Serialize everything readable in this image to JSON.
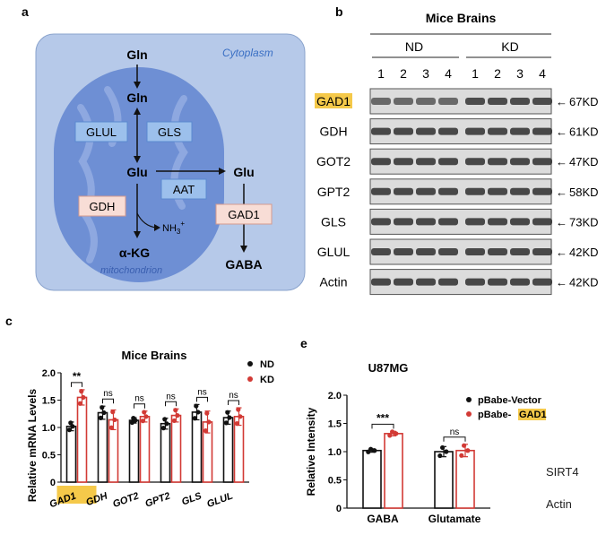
{
  "panel_a": {
    "letter": "a",
    "cytoplasm_label": "Cytoplasm",
    "mitochondrion_label": "mitochondrion",
    "gln_top": "Gln",
    "gln_mito": "Gln",
    "glu_mito": "Glu",
    "glu_cyto": "Glu",
    "akg": "α-KG",
    "gaba": "GABA",
    "nh3": "NH",
    "nh3_sub": "3",
    "nh3_sup": "+",
    "enzymes": {
      "glul": "GLUL",
      "gls": "GLS",
      "gdh": "GDH",
      "aat": "AAT",
      "gad1": "GAD1"
    },
    "colors": {
      "cytoplasm": "#b6c9e9",
      "mitochondrion": "#6e8fd4",
      "enzyme_blue": "#9cc0ec",
      "enzyme_pink": "#f8ddd6"
    }
  },
  "panel_b": {
    "letter": "b",
    "title": "Mice Brains",
    "groups": [
      "ND",
      "KD"
    ],
    "lanes": [
      "1",
      "2",
      "3",
      "4",
      "1",
      "2",
      "3",
      "4"
    ],
    "blots": [
      {
        "protein": "GAD1",
        "mw": "67KD",
        "highlight": true
      },
      {
        "protein": "GDH",
        "mw": "61KD",
        "highlight": false
      },
      {
        "protein": "GOT2",
        "mw": "47KD",
        "highlight": false
      },
      {
        "protein": "GPT2",
        "mw": "58KD",
        "highlight": false
      },
      {
        "protein": "GLS",
        "mw": "73KD",
        "highlight": false
      },
      {
        "protein": "GLUL",
        "mw": "42KD",
        "highlight": false
      },
      {
        "protein": "Actin",
        "mw": "42KD",
        "highlight": false
      }
    ],
    "arrow": "←",
    "highlight_color": "#f5c94a"
  },
  "panel_c": {
    "letter": "c",
    "chart_data": {
      "type": "bar",
      "title": "Mice Brains",
      "ylabel": "Relative mRNA Levels",
      "xlabel": "",
      "ylim": [
        0,
        2.0
      ],
      "yticks": [
        "0",
        "0.5",
        "1.0",
        "1.5",
        "2.0"
      ],
      "yticks_values": [
        0,
        0.5,
        1.0,
        1.5,
        2.0
      ],
      "categories": [
        "GAD1",
        "GDH",
        "GOT2",
        "GPT2",
        "GLS",
        "GLUL"
      ],
      "series": [
        {
          "name": "ND",
          "color": "#111111",
          "values": [
            1.02,
            1.27,
            1.13,
            1.07,
            1.28,
            1.18
          ],
          "errors": [
            0.08,
            0.12,
            0.05,
            0.1,
            0.14,
            0.12
          ]
        },
        {
          "name": "KD",
          "color": "#d23a35",
          "values": [
            1.55,
            1.14,
            1.2,
            1.22,
            1.1,
            1.2
          ],
          "errors": [
            0.14,
            0.18,
            0.1,
            0.12,
            0.2,
            0.16
          ]
        }
      ],
      "significance": [
        "**",
        "ns",
        "ns",
        "ns",
        "ns",
        "ns"
      ],
      "legend": [
        "ND",
        "KD"
      ]
    }
  },
  "panel_e": {
    "letter": "e",
    "chart_data": {
      "type": "bar",
      "title": "U87MG",
      "ylabel": "Relative Intensity",
      "xlabel": "",
      "ylim": [
        0,
        2.0
      ],
      "yticks": [
        "0",
        "0.5",
        "1.0",
        "1.5",
        "2.0"
      ],
      "yticks_values": [
        0,
        0.5,
        1.0,
        1.5,
        2.0
      ],
      "categories": [
        "GABA",
        "Glutamate"
      ],
      "series": [
        {
          "name": "pBabe-Vector",
          "color": "#111111",
          "values": [
            1.02,
            1.0
          ],
          "errors": [
            0.03,
            0.09
          ]
        },
        {
          "name": "pBabe-GAD1",
          "color": "#d23a35",
          "values": [
            1.32,
            1.02
          ],
          "errors": [
            0.04,
            0.11
          ]
        }
      ],
      "significance": [
        "***",
        "ns"
      ],
      "legend": [
        "pBabe-Vector",
        "pBabe-",
        "GAD1"
      ]
    }
  },
  "panel_f_fragment": {
    "labels": [
      "SIRT4",
      "Actin"
    ]
  }
}
